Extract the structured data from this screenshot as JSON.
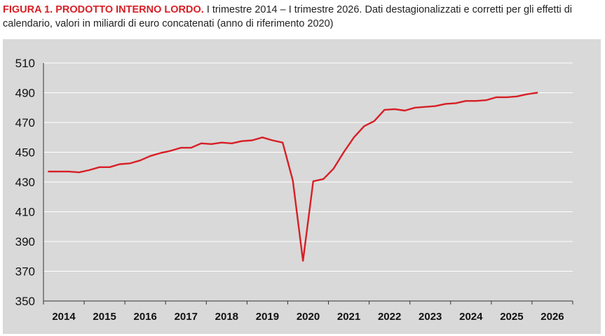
{
  "caption": {
    "label": "FIGURA 1.",
    "title": "PRODOTTO INTERNO LORDO.",
    "text": "I trimestre 2014 – I trimestre 2026. Dati destagionalizzati e corretti per gli effetti di calendario, valori  in miliardi di euro concatenati (anno di riferimento 2020)"
  },
  "chart_data": {
    "type": "line",
    "title": "PRODOTTO INTERNO LORDO.",
    "xlabel": "",
    "ylabel": "",
    "ylim": [
      350,
      510
    ],
    "yticks": [
      350,
      370,
      390,
      410,
      430,
      450,
      470,
      490,
      510
    ],
    "year_labels": [
      "2014",
      "2015",
      "2016",
      "2017",
      "2018",
      "2019",
      "2020",
      "2021",
      "2022",
      "2023",
      "2024",
      "2025",
      "2026"
    ],
    "grid": "horizontal",
    "colors": {
      "line": "#d71f26",
      "background": "#d9d9d9",
      "grid": "#ffffff"
    },
    "series": [
      {
        "x": [
          "2014Q1",
          "2014Q2",
          "2014Q3",
          "2014Q4",
          "2015Q1",
          "2015Q2",
          "2015Q3",
          "2015Q4",
          "2016Q1",
          "2016Q2",
          "2016Q3",
          "2016Q4",
          "2017Q1",
          "2017Q2",
          "2017Q3",
          "2017Q4",
          "2018Q1",
          "2018Q2",
          "2018Q3",
          "2018Q4",
          "2019Q1",
          "2019Q2",
          "2019Q3",
          "2019Q4",
          "2020Q1",
          "2020Q2",
          "2020Q3",
          "2020Q4",
          "2021Q1",
          "2021Q2",
          "2021Q3",
          "2021Q4",
          "2022Q1",
          "2022Q2",
          "2022Q3",
          "2022Q4",
          "2023Q1",
          "2023Q2",
          "2023Q3",
          "2023Q4",
          "2024Q1",
          "2024Q2",
          "2024Q3",
          "2024Q4",
          "2025Q1",
          "2025Q2",
          "2025Q3",
          "2025Q4",
          "2026Q1"
        ],
        "values": [
          437,
          437,
          437,
          436.5,
          438,
          440,
          440,
          442,
          442.5,
          444.5,
          447.5,
          449.5,
          451,
          453,
          453,
          456,
          455.5,
          456.5,
          456,
          457.5,
          458,
          460,
          458,
          456.5,
          431,
          377,
          430.5,
          432,
          439,
          450,
          460,
          467.5,
          471,
          478.5,
          479,
          478,
          480,
          480.5,
          481,
          482.5,
          483,
          484.5,
          484.5,
          485,
          487,
          487,
          487.5,
          489,
          490
        ]
      }
    ]
  }
}
